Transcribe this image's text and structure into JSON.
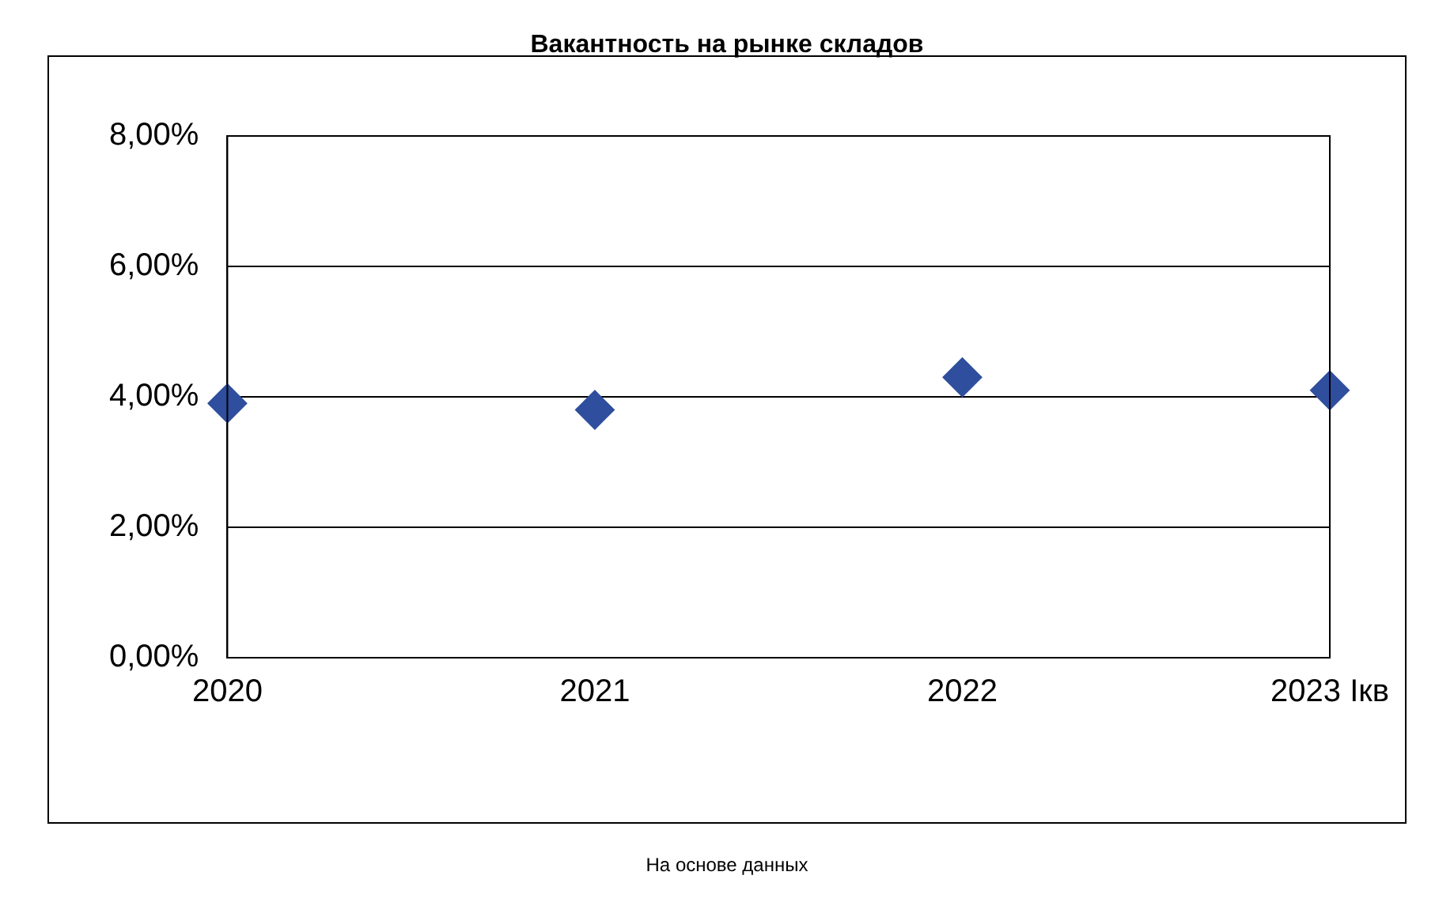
{
  "chart_data": {
    "type": "scatter",
    "title": "Вакантность на рынке складов",
    "annotations": [
      "На основе данных"
    ],
    "categories": [
      "2020",
      "2021",
      "2022",
      "2023 Iкв"
    ],
    "series": [
      {
        "color": "#2f4f9e",
        "values": [
          3.9,
          3.8,
          4.3,
          4.1
        ]
      }
    ],
    "ylim": [
      0,
      8
    ],
    "yticks": [
      {
        "value": 0,
        "label": "0,00%"
      },
      {
        "value": 2,
        "label": "2,00%"
      },
      {
        "value": 4,
        "label": "4,00%"
      },
      {
        "value": 6,
        "label": "6,00%"
      },
      {
        "value": 8,
        "label": "8,00%"
      }
    ],
    "grid": "y",
    "legend": false,
    "marker": "diamond"
  }
}
